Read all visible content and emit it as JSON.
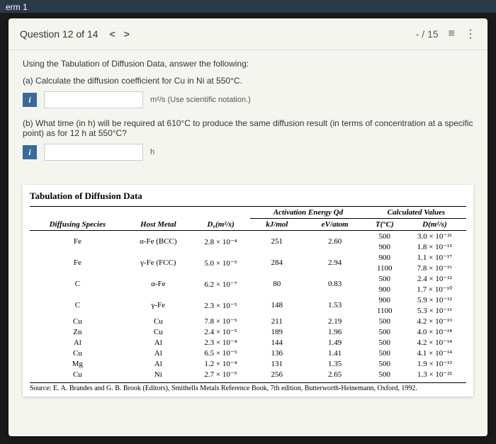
{
  "topbar": {
    "term": "erm 1"
  },
  "header": {
    "question_label": "Question 12 of 14",
    "prev": "<",
    "next": ">",
    "progress": "- / 15",
    "list_icon": "≡",
    "more_icon": "⋮"
  },
  "content": {
    "prompt": "Using the Tabulation of Diffusion Data, answer the following:",
    "part_a": "(a) Calculate the diffusion coefficient for Cu in Ni at 550°C.",
    "unit_a": "m²/s (Use scientific notation.)",
    "part_b": "(b) What time (in h) will be required at 610°C to produce the same diffusion result (in terms of concentration at a specific point) as for 12 h at 550°C?",
    "unit_b": "h",
    "info": "i"
  },
  "table": {
    "title": "Tabulation of Diffusion Data",
    "headers": {
      "species": "Diffusing Species",
      "host": "Host Metal",
      "d0": "D₀(m²/s)",
      "activation": "Activation Energy Qd",
      "kjmol": "kJ/mol",
      "evatom": "eV/atom",
      "calculated": "Calculated Values",
      "tc": "T(°C)",
      "dm2s": "D(m²/s)"
    },
    "rows": [
      {
        "species": "Fe",
        "host": "α-Fe (BCC)",
        "d0": "2.8 × 10⁻⁴",
        "kj": "251",
        "ev": "2.60",
        "calc": [
          [
            "500",
            "3.0 × 10⁻²¹"
          ],
          [
            "900",
            "1.8 × 10⁻¹⁵"
          ]
        ]
      },
      {
        "species": "Fe",
        "host": "γ-Fe (FCC)",
        "d0": "5.0 × 10⁻⁵",
        "kj": "284",
        "ev": "2.94",
        "calc": [
          [
            "900",
            "1.1 × 10⁻¹⁷"
          ],
          [
            "1100",
            "7.8 × 10⁻¹⁶"
          ]
        ]
      },
      {
        "species": "C",
        "host": "α-Fe",
        "d0": "6.2 × 10⁻⁷",
        "kj": "80",
        "ev": "0.83",
        "calc": [
          [
            "500",
            "2.4 × 10⁻¹²"
          ],
          [
            "900",
            "1.7 × 10⁻¹⁰"
          ]
        ]
      },
      {
        "species": "C",
        "host": "γ-Fe",
        "d0": "2.3 × 10⁻⁵",
        "kj": "148",
        "ev": "1.53",
        "calc": [
          [
            "900",
            "5.9 × 10⁻¹²"
          ],
          [
            "1100",
            "5.3 × 10⁻¹¹"
          ]
        ]
      },
      {
        "species": "Cu",
        "host": "Cu",
        "d0": "7.8 × 10⁻⁵",
        "kj": "211",
        "ev": "2.19",
        "calc": [
          [
            "500",
            "4.2 × 10⁻¹⁹"
          ]
        ]
      },
      {
        "species": "Zn",
        "host": "Cu",
        "d0": "2.4 × 10⁻⁵",
        "kj": "189",
        "ev": "1.96",
        "calc": [
          [
            "500",
            "4.0 × 10⁻¹⁸"
          ]
        ]
      },
      {
        "species": "Al",
        "host": "Al",
        "d0": "2.3 × 10⁻⁴",
        "kj": "144",
        "ev": "1.49",
        "calc": [
          [
            "500",
            "4.2 × 10⁻¹⁴"
          ]
        ]
      },
      {
        "species": "Cu",
        "host": "Al",
        "d0": "6.5 × 10⁻⁵",
        "kj": "136",
        "ev": "1.41",
        "calc": [
          [
            "500",
            "4.1 × 10⁻¹⁴"
          ]
        ]
      },
      {
        "species": "Mg",
        "host": "Al",
        "d0": "1.2 × 10⁻⁴",
        "kj": "131",
        "ev": "1.35",
        "calc": [
          [
            "500",
            "1.9 × 10⁻¹³"
          ]
        ]
      },
      {
        "species": "Cu",
        "host": "Ni",
        "d0": "2.7 × 10⁻⁵",
        "kj": "256",
        "ev": "2.65",
        "calc": [
          [
            "500",
            "1.3 × 10⁻²²"
          ]
        ]
      }
    ],
    "source": "Source: E. A. Brandes and G. B. Brook (Editors), Smithells Metals Reference Book, 7th edition, Butterworth-Heinemann, Oxford, 1992."
  }
}
